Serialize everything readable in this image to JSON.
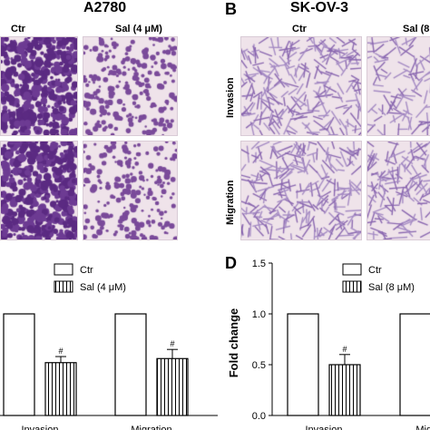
{
  "panelA": {
    "title": "A2780",
    "col_labels": [
      "Ctr",
      "Sal (4 μM)"
    ],
    "legend": [
      "Ctr",
      "Sal (4 μM)"
    ]
  },
  "panelB": {
    "letter": "B",
    "title": "SK-OV-3",
    "col_labels": [
      "Ctr",
      "Sal (8"
    ],
    "row_labels": [
      "Invasion",
      "Migration"
    ]
  },
  "panelD": {
    "letter": "D",
    "legend": [
      "Ctr",
      "Sal (8 μM)"
    ]
  },
  "colors": {
    "cell_dense": "#5b2a82",
    "cell_sparse": "#7a4a9a",
    "background_micro": "#efe3ea"
  },
  "chart_data": [
    {
      "type": "bar",
      "categories": [
        "Invasion",
        "Migration"
      ],
      "series": [
        {
          "name": "Ctr",
          "values": [
            1.0,
            1.0
          ],
          "errors": [
            0,
            0
          ]
        },
        {
          "name": "Sal (4 μM)",
          "values": [
            0.52,
            0.56
          ],
          "errors": [
            0.06,
            0.09
          ]
        }
      ],
      "annotations": [
        "#",
        "#"
      ],
      "ylim": [
        0,
        1.5
      ],
      "legend": "top-right"
    },
    {
      "type": "bar",
      "categories": [
        "Invasion",
        "Migration"
      ],
      "series": [
        {
          "name": "Ctr",
          "values": [
            1.0,
            1.0
          ],
          "errors": [
            0,
            0
          ]
        },
        {
          "name": "Sal (8 μM)",
          "values": [
            0.5,
            null
          ],
          "errors": [
            0.1,
            null
          ]
        }
      ],
      "annotations": [
        "#"
      ],
      "ylabel": "Fold change",
      "yticks": [
        "0.0",
        "0.5",
        "1.0",
        "1.5"
      ],
      "ylim": [
        0,
        1.5
      ],
      "legend": "top-right"
    }
  ]
}
